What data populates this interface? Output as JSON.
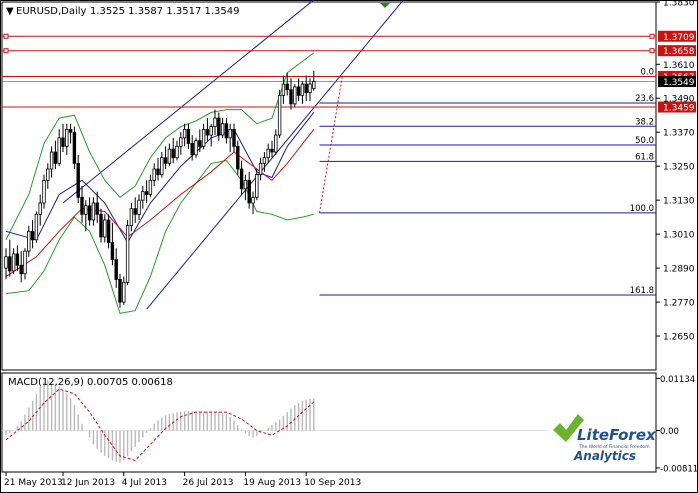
{
  "header": {
    "symbol_label": "EURUSD,Daily",
    "ohlc_text": "1.3525 1.3587 1.3517 1.3549"
  },
  "macd_header": {
    "label": "MACD(12,26,9)",
    "values_text": "0.00705 0.00618"
  },
  "logo": {
    "brand": "LiteForex",
    "tagline": "The World of Financial Freedom",
    "sub": "Analytics"
  },
  "colors": {
    "up_candle": "#ffffff",
    "down_candle": "#000000",
    "bollinger": "#22a022",
    "ma_blue": "#1a1aa0",
    "ma_red": "#cc1111",
    "channel": "#1a1aa0",
    "level_red": "#cc1111",
    "fib": "#1a1aa0",
    "macd_signal": "#cc1111",
    "macd_hist": "#b8b8b8",
    "price_marker": "#cc1111",
    "logo_green": "#6ab42d",
    "logo_blue": "#1f4f96"
  },
  "chart_data": {
    "type": "candlestick",
    "symbol": "EURUSD",
    "timeframe": "Daily",
    "price_axis": {
      "ylim": [
        1.253,
        1.383
      ],
      "ticks": [
        1.383,
        1.361,
        1.349,
        1.337,
        1.325,
        1.313,
        1.301,
        1.289,
        1.277,
        1.265
      ],
      "tick_labels": [
        "1.3830",
        "1.3610",
        "1.3490",
        "1.3370",
        "1.3250",
        "1.3130",
        "1.3010",
        "1.2890",
        "1.2770",
        "1.2650"
      ],
      "highlighted": [
        {
          "label": "1.3709",
          "value": 1.3709,
          "style": "red"
        },
        {
          "label": "1.3658",
          "value": 1.3658,
          "style": "red"
        },
        {
          "label": "1.3567",
          "value": 1.3567,
          "style": "red"
        },
        {
          "label": "1.3549",
          "value": 1.3549,
          "style": "black"
        },
        {
          "label": "1.3459",
          "value": 1.3459,
          "style": "red"
        }
      ]
    },
    "x_axis": {
      "labels": [
        "21 May 2013",
        "12 Jun 2013",
        "4 Jul 2013",
        "26 Jul 2013",
        "19 Aug 2013",
        "10 Sep 2013"
      ],
      "label_bars": [
        0,
        15,
        31,
        47,
        63,
        79
      ]
    },
    "resistance_levels": [
      1.3709,
      1.3658,
      1.3567,
      1.3459
    ],
    "fibonacci": [
      {
        "label": "0.0",
        "value": 1.3567
      },
      {
        "label": "23.6",
        "value": 1.3473
      },
      {
        "label": "38.2",
        "value": 1.3391
      },
      {
        "label": "50.0",
        "value": 1.3325
      },
      {
        "label": "61.8",
        "value": 1.3267
      },
      {
        "label": "100.0",
        "value": 1.3085
      },
      {
        "label": "161.8",
        "value": 1.2795
      }
    ],
    "channel": {
      "upper": [
        {
          "bar": 15,
          "price": 1.312
        },
        {
          "bar": 84,
          "price": 1.387
        }
      ],
      "lower": [
        {
          "bar": 37,
          "price": 1.2745
        },
        {
          "bar": 93,
          "price": 1.365
        }
      ]
    },
    "ohlc": [
      [
        1.289,
        1.296,
        1.285,
        1.293
      ],
      [
        1.293,
        1.299,
        1.286,
        1.288
      ],
      [
        1.288,
        1.296,
        1.287,
        1.294
      ],
      [
        1.294,
        1.297,
        1.288,
        1.29
      ],
      [
        1.29,
        1.295,
        1.284,
        1.287
      ],
      [
        1.287,
        1.296,
        1.285,
        1.295
      ],
      [
        1.295,
        1.304,
        1.293,
        1.302
      ],
      [
        1.302,
        1.306,
        1.296,
        1.299
      ],
      [
        1.299,
        1.309,
        1.298,
        1.308
      ],
      [
        1.308,
        1.315,
        1.304,
        1.312
      ],
      [
        1.312,
        1.322,
        1.31,
        1.32
      ],
      [
        1.32,
        1.326,
        1.317,
        1.324
      ],
      [
        1.324,
        1.332,
        1.321,
        1.33
      ],
      [
        1.33,
        1.334,
        1.324,
        1.326
      ],
      [
        1.326,
        1.338,
        1.325,
        1.335
      ],
      [
        1.335,
        1.34,
        1.33,
        1.332
      ],
      [
        1.332,
        1.34,
        1.329,
        1.338
      ],
      [
        1.338,
        1.34,
        1.333,
        1.337
      ],
      [
        1.337,
        1.339,
        1.324,
        1.326
      ],
      [
        1.326,
        1.329,
        1.312,
        1.314
      ],
      [
        1.314,
        1.318,
        1.305,
        1.308
      ],
      [
        1.308,
        1.313,
        1.302,
        1.311
      ],
      [
        1.311,
        1.314,
        1.304,
        1.306
      ],
      [
        1.306,
        1.314,
        1.304,
        1.312
      ],
      [
        1.312,
        1.316,
        1.305,
        1.308
      ],
      [
        1.308,
        1.31,
        1.298,
        1.3
      ],
      [
        1.3,
        1.308,
        1.298,
        1.306
      ],
      [
        1.306,
        1.308,
        1.296,
        1.298
      ],
      [
        1.298,
        1.305,
        1.29,
        1.292
      ],
      [
        1.292,
        1.296,
        1.282,
        1.285
      ],
      [
        1.285,
        1.287,
        1.275,
        1.277
      ],
      [
        1.277,
        1.286,
        1.276,
        1.284
      ],
      [
        1.284,
        1.306,
        1.283,
        1.304
      ],
      [
        1.304,
        1.312,
        1.302,
        1.31
      ],
      [
        1.31,
        1.314,
        1.305,
        1.308
      ],
      [
        1.308,
        1.315,
        1.306,
        1.313
      ],
      [
        1.313,
        1.318,
        1.31,
        1.316
      ],
      [
        1.316,
        1.32,
        1.312,
        1.315
      ],
      [
        1.315,
        1.322,
        1.314,
        1.32
      ],
      [
        1.32,
        1.326,
        1.318,
        1.324
      ],
      [
        1.324,
        1.328,
        1.32,
        1.322
      ],
      [
        1.322,
        1.33,
        1.321,
        1.328
      ],
      [
        1.328,
        1.332,
        1.324,
        1.326
      ],
      [
        1.326,
        1.333,
        1.325,
        1.331
      ],
      [
        1.331,
        1.335,
        1.326,
        1.328
      ],
      [
        1.328,
        1.334,
        1.327,
        1.332
      ],
      [
        1.332,
        1.337,
        1.329,
        1.335
      ],
      [
        1.335,
        1.34,
        1.332,
        1.338
      ],
      [
        1.338,
        1.34,
        1.331,
        1.333
      ],
      [
        1.333,
        1.336,
        1.327,
        1.329
      ],
      [
        1.329,
        1.335,
        1.328,
        1.334
      ],
      [
        1.334,
        1.338,
        1.33,
        1.332
      ],
      [
        1.332,
        1.34,
        1.331,
        1.338
      ],
      [
        1.338,
        1.342,
        1.334,
        1.336
      ],
      [
        1.336,
        1.34,
        1.332,
        1.339
      ],
      [
        1.339,
        1.345,
        1.336,
        1.342
      ],
      [
        1.342,
        1.344,
        1.334,
        1.336
      ],
      [
        1.336,
        1.342,
        1.335,
        1.34
      ],
      [
        1.34,
        1.342,
        1.333,
        1.335
      ],
      [
        1.335,
        1.34,
        1.33,
        1.338
      ],
      [
        1.338,
        1.34,
        1.33,
        1.332
      ],
      [
        1.332,
        1.334,
        1.322,
        1.324
      ],
      [
        1.324,
        1.327,
        1.315,
        1.317
      ],
      [
        1.317,
        1.322,
        1.313,
        1.32
      ],
      [
        1.32,
        1.323,
        1.31,
        1.312
      ],
      [
        1.312,
        1.316,
        1.308,
        1.314
      ],
      [
        1.314,
        1.324,
        1.313,
        1.322
      ],
      [
        1.322,
        1.328,
        1.32,
        1.326
      ],
      [
        1.326,
        1.33,
        1.323,
        1.328
      ],
      [
        1.328,
        1.333,
        1.326,
        1.331
      ],
      [
        1.331,
        1.334,
        1.328,
        1.33
      ],
      [
        1.33,
        1.338,
        1.329,
        1.336
      ],
      [
        1.336,
        1.352,
        1.335,
        1.35
      ],
      [
        1.35,
        1.357,
        1.347,
        1.354
      ],
      [
        1.354,
        1.358,
        1.35,
        1.352
      ],
      [
        1.352,
        1.356,
        1.345,
        1.347
      ],
      [
        1.347,
        1.354,
        1.346,
        1.353
      ],
      [
        1.353,
        1.356,
        1.348,
        1.35
      ],
      [
        1.35,
        1.355,
        1.347,
        1.354
      ],
      [
        1.354,
        1.357,
        1.348,
        1.351
      ],
      [
        1.351,
        1.356,
        1.348,
        1.354
      ],
      [
        1.3525,
        1.3587,
        1.3517,
        1.3549
      ]
    ],
    "ma_blue": [
      [
        0,
        1.302
      ],
      [
        8,
        1.299
      ],
      [
        14,
        1.315
      ],
      [
        20,
        1.32
      ],
      [
        26,
        1.312
      ],
      [
        32,
        1.298
      ],
      [
        38,
        1.312
      ],
      [
        46,
        1.325
      ],
      [
        54,
        1.335
      ],
      [
        60,
        1.338
      ],
      [
        66,
        1.323
      ],
      [
        70,
        1.321
      ],
      [
        74,
        1.332
      ],
      [
        81,
        1.344
      ]
    ],
    "ma_red": [
      [
        0,
        1.286
      ],
      [
        8,
        1.293
      ],
      [
        14,
        1.302
      ],
      [
        20,
        1.31
      ],
      [
        26,
        1.309
      ],
      [
        32,
        1.3
      ],
      [
        38,
        1.306
      ],
      [
        46,
        1.315
      ],
      [
        54,
        1.323
      ],
      [
        60,
        1.33
      ],
      [
        66,
        1.324
      ],
      [
        70,
        1.32
      ],
      [
        74,
        1.326
      ],
      [
        81,
        1.338
      ]
    ],
    "bb_upper": [
      [
        0,
        1.299
      ],
      [
        6,
        1.315
      ],
      [
        10,
        1.333
      ],
      [
        14,
        1.342
      ],
      [
        18,
        1.343
      ],
      [
        22,
        1.33
      ],
      [
        26,
        1.32
      ],
      [
        30,
        1.314
      ],
      [
        34,
        1.318
      ],
      [
        38,
        1.328
      ],
      [
        42,
        1.335
      ],
      [
        46,
        1.339
      ],
      [
        50,
        1.341
      ],
      [
        54,
        1.344
      ],
      [
        58,
        1.345
      ],
      [
        62,
        1.345
      ],
      [
        66,
        1.34
      ],
      [
        70,
        1.342
      ],
      [
        74,
        1.358
      ],
      [
        78,
        1.362
      ],
      [
        81,
        1.365
      ]
    ],
    "bb_lower": [
      [
        0,
        1.28
      ],
      [
        6,
        1.281
      ],
      [
        10,
        1.288
      ],
      [
        14,
        1.299
      ],
      [
        18,
        1.307
      ],
      [
        22,
        1.302
      ],
      [
        26,
        1.29
      ],
      [
        30,
        1.273
      ],
      [
        34,
        1.274
      ],
      [
        38,
        1.286
      ],
      [
        42,
        1.302
      ],
      [
        46,
        1.312
      ],
      [
        50,
        1.319
      ],
      [
        54,
        1.326
      ],
      [
        58,
        1.327
      ],
      [
        62,
        1.32
      ],
      [
        66,
        1.309
      ],
      [
        70,
        1.308
      ],
      [
        74,
        1.306
      ],
      [
        78,
        1.307
      ],
      [
        81,
        1.308
      ]
    ],
    "macd": {
      "label": "MACD(12,26,9)",
      "main": 0.00705,
      "signal": 0.00618,
      "ylim": [
        -0.009,
        0.0125
      ],
      "ticks": [
        0.01134,
        0.0,
        -0.00811
      ],
      "tick_labels": [
        "0.01134",
        "0.00",
        "-0.00811"
      ],
      "histogram": [
        -0.001,
        -0.0005,
        0.0,
        0.001,
        0.002,
        0.0035,
        0.005,
        0.0065,
        0.008,
        0.0095,
        0.0105,
        0.011,
        0.0108,
        0.01,
        0.0095,
        0.0088,
        0.008,
        0.007,
        0.0055,
        0.0035,
        0.0015,
        0.0,
        -0.0015,
        -0.003,
        -0.004,
        -0.0048,
        -0.0055,
        -0.006,
        -0.0065,
        -0.0068,
        -0.007,
        -0.0065,
        -0.0055,
        -0.0045,
        -0.0035,
        -0.0025,
        -0.0015,
        -0.0005,
        0.0005,
        0.0015,
        0.0022,
        0.0028,
        0.0033,
        0.0036,
        0.0038,
        0.004,
        0.0041,
        0.0042,
        0.0042,
        0.0041,
        0.004,
        0.0039,
        0.004,
        0.0041,
        0.0042,
        0.0041,
        0.004,
        0.0038,
        0.0035,
        0.003,
        0.0022,
        0.0012,
        0.0002,
        -0.0006,
        -0.0012,
        -0.0015,
        -0.0012,
        -0.0006,
        0.0,
        0.0006,
        0.0012,
        0.0018,
        0.0024,
        0.0032,
        0.004,
        0.0048,
        0.0055,
        0.006,
        0.0064,
        0.0067,
        0.0069,
        0.007
      ],
      "signal_line": [
        [
          0,
          -0.002
        ],
        [
          6,
          0.002
        ],
        [
          10,
          0.006
        ],
        [
          14,
          0.009
        ],
        [
          18,
          0.008
        ],
        [
          22,
          0.004
        ],
        [
          26,
          -0.001
        ],
        [
          30,
          -0.0055
        ],
        [
          34,
          -0.0065
        ],
        [
          38,
          -0.003
        ],
        [
          42,
          0.0005
        ],
        [
          46,
          0.003
        ],
        [
          50,
          0.004
        ],
        [
          54,
          0.004
        ],
        [
          58,
          0.004
        ],
        [
          62,
          0.0025
        ],
        [
          66,
          0.0
        ],
        [
          70,
          -0.001
        ],
        [
          74,
          0.001
        ],
        [
          78,
          0.004
        ],
        [
          81,
          0.0062
        ]
      ]
    }
  }
}
